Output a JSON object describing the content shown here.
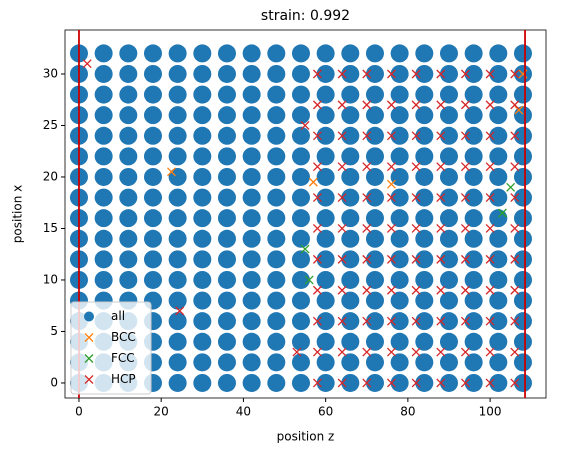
{
  "chart_data": {
    "type": "scatter",
    "title": "strain: 0.992",
    "xlabel": "position z",
    "ylabel": "position x",
    "xlim": [
      -3.4,
      113.6
    ],
    "ylim": [
      -1.46,
      34.27
    ],
    "xticks": [
      0,
      20,
      40,
      60,
      80,
      100
    ],
    "yticks": [
      0,
      5,
      10,
      15,
      20,
      25,
      30
    ],
    "legend": "lower left",
    "vlines": [
      0,
      108.5
    ],
    "vline_color": "#cc0000",
    "series": [
      {
        "name": "all",
        "marker": "o",
        "color": "#1f77b4",
        "x": [
          0,
          6,
          12,
          18,
          24,
          30,
          36,
          42,
          48,
          54,
          60,
          66,
          72,
          78,
          84,
          90,
          96,
          102,
          108,
          0,
          6,
          12,
          18,
          24,
          30,
          36,
          42,
          48,
          54,
          60,
          66,
          72,
          78,
          84,
          90,
          96,
          102,
          108,
          0,
          6,
          12,
          18,
          24,
          30,
          36,
          42,
          48,
          54,
          60,
          66,
          72,
          78,
          84,
          90,
          96,
          102,
          108,
          0,
          6,
          12,
          18,
          24,
          30,
          36,
          42,
          48,
          54,
          60,
          66,
          72,
          78,
          84,
          90,
          96,
          102,
          108,
          0,
          6,
          12,
          18,
          24,
          30,
          36,
          42,
          48,
          54,
          60,
          66,
          72,
          78,
          84,
          90,
          96,
          102,
          108,
          0,
          6,
          12,
          18,
          24,
          30,
          36,
          42,
          48,
          54,
          60,
          66,
          72,
          78,
          84,
          90,
          96,
          102,
          108,
          0,
          6,
          12,
          18,
          24,
          30,
          36,
          42,
          48,
          54,
          60,
          66,
          72,
          78,
          84,
          90,
          96,
          102,
          108,
          0,
          6,
          12,
          18,
          24,
          30,
          36,
          42,
          48,
          54,
          60,
          66,
          72,
          78,
          84,
          90,
          96,
          102,
          108,
          0,
          6,
          12,
          18,
          24,
          30,
          36,
          42,
          48,
          54,
          60,
          66,
          72,
          78,
          84,
          90,
          96,
          102,
          108,
          0,
          6,
          12,
          18,
          24,
          30,
          36,
          42,
          48,
          54,
          60,
          66,
          72,
          78,
          84,
          90,
          96,
          102,
          108,
          0,
          6,
          12,
          18,
          24,
          30,
          36,
          42,
          48,
          54,
          60,
          66,
          72,
          78,
          84,
          90,
          96,
          102,
          108,
          0,
          6,
          12,
          18,
          24,
          30,
          36,
          42,
          48,
          54,
          60,
          66,
          72,
          78,
          84,
          90,
          96,
          102,
          108,
          0,
          6,
          12,
          18,
          24,
          30,
          36,
          42,
          48,
          54,
          60,
          66,
          72,
          78,
          84,
          90,
          96,
          102,
          108,
          0,
          6,
          12,
          18,
          24,
          30,
          36,
          42,
          48,
          54,
          60,
          66,
          72,
          78,
          84,
          90,
          96,
          102,
          108,
          0,
          6,
          12,
          18,
          24,
          30,
          36,
          42,
          48,
          54,
          60,
          66,
          72,
          78,
          84,
          90,
          96,
          102,
          108,
          0,
          6,
          12,
          18,
          24,
          30,
          36,
          42,
          48,
          54,
          60,
          66,
          72,
          78,
          84,
          90,
          96,
          102,
          108,
          0,
          6,
          12,
          18,
          24,
          30,
          36,
          42,
          48,
          54,
          60,
          66,
          72,
          78,
          84,
          90,
          96,
          102,
          108
        ],
        "y": [
          0,
          0,
          0,
          0,
          0,
          0,
          0,
          0,
          0,
          0,
          0,
          0,
          0,
          0,
          0,
          0,
          0,
          0,
          0,
          2,
          2,
          2,
          2,
          2,
          2,
          2,
          2,
          2,
          2,
          2,
          2,
          2,
          2,
          2,
          2,
          2,
          2,
          2,
          4,
          4,
          4,
          4,
          4,
          4,
          4,
          4,
          4,
          4,
          4,
          4,
          4,
          4,
          4,
          4,
          4,
          4,
          4,
          6,
          6,
          6,
          6,
          6,
          6,
          6,
          6,
          6,
          6,
          6,
          6,
          6,
          6,
          6,
          6,
          6,
          6,
          6,
          8,
          8,
          8,
          8,
          8,
          8,
          8,
          8,
          8,
          8,
          8,
          8,
          8,
          8,
          8,
          8,
          8,
          8,
          8,
          10,
          10,
          10,
          10,
          10,
          10,
          10,
          10,
          10,
          10,
          10,
          10,
          10,
          10,
          10,
          10,
          10,
          10,
          10,
          12,
          12,
          12,
          12,
          12,
          12,
          12,
          12,
          12,
          12,
          12,
          12,
          12,
          12,
          12,
          12,
          12,
          12,
          12,
          14,
          14,
          14,
          14,
          14,
          14,
          14,
          14,
          14,
          14,
          14,
          14,
          14,
          14,
          14,
          14,
          14,
          14,
          14,
          16,
          16,
          16,
          16,
          16,
          16,
          16,
          16,
          16,
          16,
          16,
          16,
          16,
          16,
          16,
          16,
          16,
          16,
          16,
          18,
          18,
          18,
          18,
          18,
          18,
          18,
          18,
          18,
          18,
          18,
          18,
          18,
          18,
          18,
          18,
          18,
          18,
          18,
          20,
          20,
          20,
          20,
          20,
          20,
          20,
          20,
          20,
          20,
          20,
          20,
          20,
          20,
          20,
          20,
          20,
          20,
          20,
          22,
          22,
          22,
          22,
          22,
          22,
          22,
          22,
          22,
          22,
          22,
          22,
          22,
          22,
          22,
          22,
          22,
          22,
          22,
          24,
          24,
          24,
          24,
          24,
          24,
          24,
          24,
          24,
          24,
          24,
          24,
          24,
          24,
          24,
          24,
          24,
          24,
          24,
          26,
          26,
          26,
          26,
          26,
          26,
          26,
          26,
          26,
          26,
          26,
          26,
          26,
          26,
          26,
          26,
          26,
          26,
          26,
          28,
          28,
          28,
          28,
          28,
          28,
          28,
          28,
          28,
          28,
          28,
          28,
          28,
          28,
          28,
          28,
          28,
          28,
          28,
          30,
          30,
          30,
          30,
          30,
          30,
          30,
          30,
          30,
          30,
          30,
          30,
          30,
          30,
          30,
          30,
          30,
          30,
          30,
          32,
          32,
          32,
          32,
          32,
          32,
          32,
          32,
          32,
          32,
          32,
          32,
          32,
          32,
          32,
          32,
          32,
          32,
          32
        ]
      },
      {
        "name": "BCC",
        "marker": "x",
        "color": "#ff7f0e",
        "x": [
          22.5,
          108,
          107,
          57,
          76
        ],
        "y": [
          20.5,
          30,
          26.5,
          19.5,
          19.3
        ]
      },
      {
        "name": "FCC",
        "marker": "x",
        "color": "#2ca02c",
        "x": [
          55,
          56,
          103,
          105
        ],
        "y": [
          13,
          10,
          16.5,
          19
        ]
      },
      {
        "name": "HCP",
        "marker": "x",
        "color": "#d62728",
        "x": [
          58,
          64,
          70,
          76,
          82,
          88,
          94,
          100,
          106,
          58,
          64,
          70,
          76,
          82,
          88,
          94,
          100,
          106,
          58,
          64,
          70,
          76,
          82,
          88,
          94,
          100,
          106,
          58,
          64,
          70,
          76,
          82,
          88,
          94,
          100,
          106,
          58,
          64,
          70,
          76,
          82,
          88,
          94,
          100,
          106,
          58,
          64,
          70,
          76,
          82,
          88,
          94,
          100,
          106,
          58,
          64,
          70,
          76,
          82,
          88,
          94,
          100,
          106,
          58,
          64,
          70,
          76,
          82,
          88,
          94,
          100,
          106,
          58,
          64,
          70,
          76,
          82,
          88,
          94,
          100,
          106,
          58,
          64,
          70,
          76,
          82,
          88,
          94,
          100,
          106,
          58,
          64,
          70,
          76,
          82,
          88,
          94,
          100,
          106,
          2,
          24.5,
          53,
          55
        ],
        "y": [
          0,
          0,
          0,
          0,
          0,
          0,
          0,
          0,
          0,
          3,
          3,
          3,
          3,
          3,
          3,
          3,
          3,
          3,
          6,
          6,
          6,
          6,
          6,
          6,
          6,
          6,
          6,
          9,
          9,
          9,
          9,
          9,
          9,
          9,
          9,
          9,
          12,
          12,
          12,
          12,
          12,
          12,
          12,
          12,
          12,
          15,
          15,
          15,
          15,
          15,
          15,
          15,
          15,
          15,
          18,
          18,
          18,
          18,
          18,
          18,
          18,
          18,
          18,
          21,
          21,
          21,
          21,
          21,
          21,
          21,
          21,
          21,
          24,
          24,
          24,
          24,
          24,
          24,
          24,
          24,
          24,
          27,
          27,
          27,
          27,
          27,
          27,
          27,
          27,
          27,
          30,
          30,
          30,
          30,
          30,
          30,
          30,
          30,
          30,
          31,
          7,
          3,
          25
        ]
      }
    ]
  }
}
